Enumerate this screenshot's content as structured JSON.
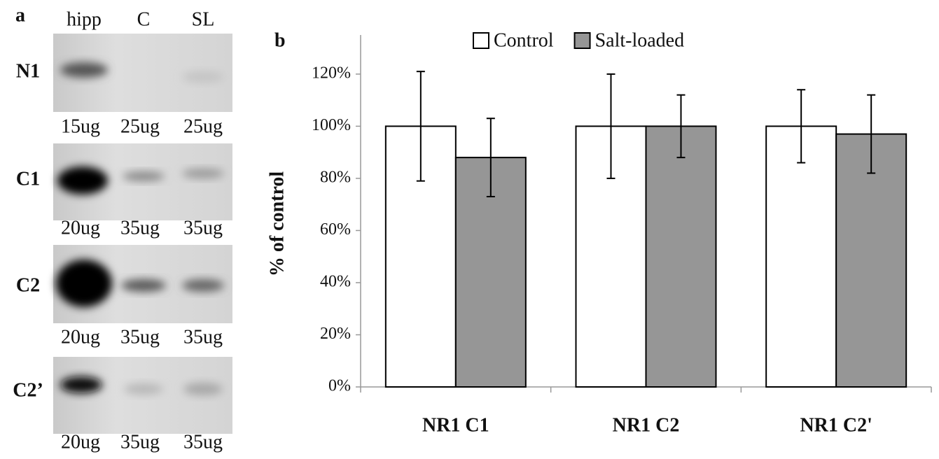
{
  "blot": {
    "panel_label": "a",
    "lanes": [
      "hipp",
      "C",
      "SL"
    ],
    "rows": [
      {
        "name": "N1",
        "loads": [
          "15ug",
          "25ug",
          "25ug"
        ]
      },
      {
        "name": "C1",
        "loads": [
          "20ug",
          "35ug",
          "35ug"
        ]
      },
      {
        "name": "C2",
        "loads": [
          "20ug",
          "35ug",
          "35ug"
        ]
      },
      {
        "name": "C2’",
        "loads": [
          "20ug",
          "35ug",
          "35ug"
        ]
      }
    ]
  },
  "chart_data": {
    "type": "bar",
    "panel_label": "b",
    "y_label": "% of control",
    "categories": [
      "NR1 C1",
      "NR1 C2",
      "NR1 C2'"
    ],
    "series": [
      {
        "name": "Control",
        "color": "#ffffff",
        "values": [
          100,
          100,
          100
        ],
        "errors": [
          21,
          20,
          14
        ]
      },
      {
        "name": "Salt-loaded",
        "color": "#969696",
        "values": [
          88,
          100,
          97
        ],
        "errors": [
          15,
          12,
          15
        ]
      }
    ],
    "ylim": [
      0,
      135
    ],
    "yticks": [
      {
        "value": 0,
        "label": "0%"
      },
      {
        "value": 20,
        "label": "20%"
      },
      {
        "value": 40,
        "label": "40%"
      },
      {
        "value": 60,
        "label": "60%"
      },
      {
        "value": 80,
        "label": "80%"
      },
      {
        "value": 100,
        "label": "100%"
      },
      {
        "value": 120,
        "label": "120%"
      }
    ],
    "grid": false,
    "legend": "top"
  }
}
